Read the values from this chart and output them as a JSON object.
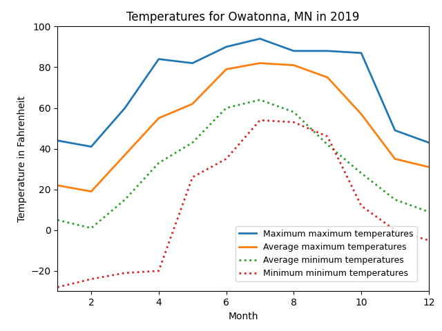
{
  "title": "Temperatures for Owatonna, MN in 2019",
  "xlabel": "Month",
  "ylabel": "Temperature in Fahrenheit",
  "months": [
    1,
    2,
    3,
    4,
    5,
    6,
    7,
    8,
    9,
    10,
    11,
    12
  ],
  "max_max": [
    44,
    41,
    60,
    84,
    82,
    90,
    94,
    88,
    88,
    87,
    49,
    43
  ],
  "avg_max": [
    22,
    19,
    37,
    55,
    62,
    79,
    82,
    81,
    75,
    57,
    35,
    31
  ],
  "avg_min": [
    5,
    1,
    15,
    33,
    43,
    60,
    64,
    58,
    42,
    28,
    15,
    9
  ],
  "min_min": [
    -28,
    -24,
    -21,
    -20,
    26,
    35,
    54,
    53,
    46,
    12,
    0,
    -5
  ],
  "ylim": [
    -30,
    100
  ],
  "xlim": [
    1,
    12
  ],
  "xticks": [
    2,
    4,
    6,
    8,
    10,
    12
  ],
  "yticks": [
    -20,
    0,
    20,
    40,
    60,
    80,
    100
  ],
  "color_max_max": "#1f77b4",
  "color_avg_max": "#ff7f0e",
  "color_avg_min": "#2ca02c",
  "color_min_min": "#d62728",
  "legend_labels": [
    "Maximum maximum temperatures",
    "Average maximum temperatures",
    "Average minimum temperatures",
    "Minimum minimum temperatures"
  ],
  "figsize": [
    6.4,
    4.8
  ],
  "dpi": 100
}
